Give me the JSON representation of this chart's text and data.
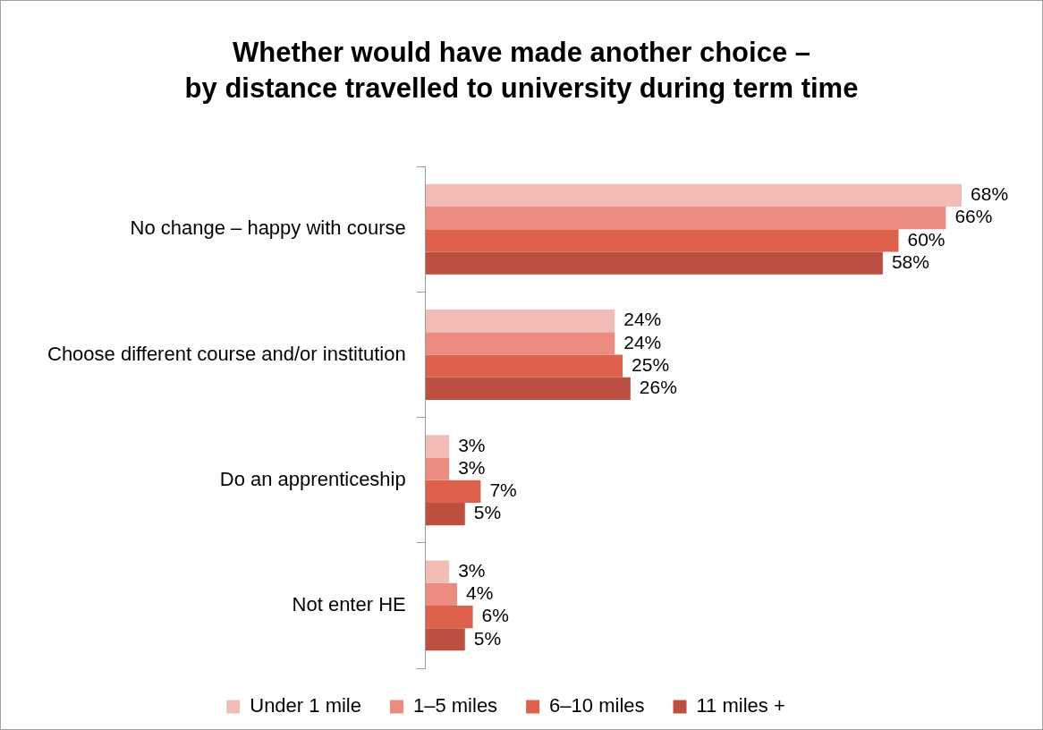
{
  "chart_data": {
    "type": "bar",
    "orientation": "horizontal",
    "title": "Whether would have made another choice –\nby distance travelled to university during term time",
    "categories": [
      "No change – happy with course",
      "Choose different course and/or institution",
      "Do an apprenticeship",
      "Not enter HE"
    ],
    "series": [
      {
        "name": "Under 1 mile",
        "color": "#f2bcb6",
        "values": [
          68,
          24,
          3,
          3
        ],
        "value_labels": [
          "68%",
          "24%",
          "3%",
          "3%"
        ]
      },
      {
        "name": "1–5 miles",
        "color": "#ec8c80",
        "values": [
          66,
          24,
          3,
          4
        ],
        "value_labels": [
          "66%",
          "24%",
          "3%",
          "4%"
        ]
      },
      {
        "name": "6–10 miles",
        "color": "#de614c",
        "values": [
          60,
          25,
          7,
          6
        ],
        "value_labels": [
          "60%",
          "25%",
          "7%",
          "6%"
        ]
      },
      {
        "name": "11 miles +",
        "color": "#bd4f40",
        "values": [
          58,
          26,
          5,
          5
        ],
        "value_labels": [
          "58%",
          "26%",
          "5%",
          "5%"
        ]
      }
    ],
    "legend": "bottom"
  }
}
